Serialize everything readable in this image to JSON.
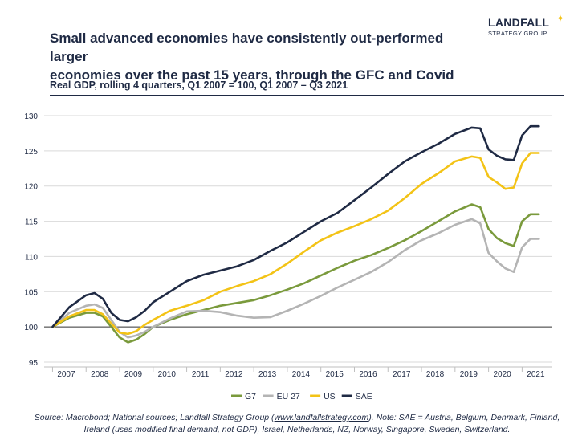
{
  "header": {
    "title_line1": "Small advanced economies have consistently out-performed larger",
    "title_line2": "economies over the past 15 years, through the GFC and Covid",
    "logo_main": "LANDFALL",
    "logo_sub": "STRATEGY GROUP",
    "subtitle": "Real GDP, rolling 4 quarters, Q1 2007 = 100, Q1 2007 – Q3 2021"
  },
  "footer": {
    "source_prefix": "Source: Macrobond; National sources; Landfall Strategy Group (",
    "source_link": "www.landfallstrategy.com",
    "source_suffix": "). Note: SAE = Austria, Belgium, Denmark, Finland, Ireland (uses modified final demand, not GDP), Israel, Netherlands, NZ, Norway, Singapore, Sweden, Switzerland."
  },
  "colors": {
    "G7": "#7a9a3c",
    "EU 27": "#b4b4b4",
    "US": "#f3c316",
    "SAE": "#1f2a44",
    "text": "#1f2a44",
    "grid": "#d9d9d9"
  },
  "chart_data": {
    "type": "line",
    "xlabel": "",
    "ylabel": "",
    "ylim": [
      95,
      130
    ],
    "yticks": [
      95,
      100,
      105,
      110,
      115,
      120,
      125,
      130
    ],
    "xlim": [
      2006.75,
      2021.9
    ],
    "xticks": [
      "2007",
      "2008",
      "2009",
      "2010",
      "2011",
      "2012",
      "2013",
      "2014",
      "2015",
      "2016",
      "2017",
      "2018",
      "2019",
      "2020",
      "2021"
    ],
    "legend_position": "bottom",
    "grid": "horizontal",
    "reference_line": 100,
    "series": [
      {
        "name": "G7",
        "x": [
          2007.0,
          2007.5,
          2008.0,
          2008.25,
          2008.5,
          2008.75,
          2009.0,
          2009.25,
          2009.5,
          2009.75,
          2010.0,
          2010.5,
          2011.0,
          2011.5,
          2012.0,
          2012.5,
          2013.0,
          2013.5,
          2014.0,
          2014.5,
          2015.0,
          2015.5,
          2016.0,
          2016.5,
          2017.0,
          2017.5,
          2018.0,
          2018.5,
          2019.0,
          2019.5,
          2019.75,
          2020.0,
          2020.25,
          2020.5,
          2020.75,
          2021.0,
          2021.25,
          2021.5
        ],
        "y": [
          100,
          101.3,
          102.0,
          102.0,
          101.5,
          100.0,
          98.5,
          97.8,
          98.2,
          99.0,
          100.0,
          101.0,
          101.8,
          102.4,
          103.0,
          103.4,
          103.8,
          104.5,
          105.3,
          106.2,
          107.3,
          108.4,
          109.4,
          110.2,
          111.2,
          112.3,
          113.6,
          115.0,
          116.4,
          117.4,
          117.0,
          113.9,
          112.6,
          111.9,
          111.5,
          115.0,
          116.0,
          116.0
        ]
      },
      {
        "name": "EU 27",
        "x": [
          2007.0,
          2007.5,
          2008.0,
          2008.25,
          2008.5,
          2008.75,
          2009.0,
          2009.25,
          2009.5,
          2009.75,
          2010.0,
          2010.5,
          2011.0,
          2011.5,
          2012.0,
          2012.5,
          2013.0,
          2013.5,
          2014.0,
          2014.5,
          2015.0,
          2015.5,
          2016.0,
          2016.5,
          2017.0,
          2017.5,
          2018.0,
          2018.5,
          2019.0,
          2019.5,
          2019.75,
          2020.0,
          2020.25,
          2020.5,
          2020.75,
          2021.0,
          2021.25,
          2021.5
        ],
        "y": [
          100,
          102.0,
          103.0,
          103.2,
          102.7,
          101.0,
          99.3,
          98.5,
          98.8,
          99.3,
          100.0,
          101.2,
          102.2,
          102.3,
          102.1,
          101.6,
          101.3,
          101.4,
          102.3,
          103.3,
          104.4,
          105.6,
          106.7,
          107.8,
          109.2,
          110.9,
          112.3,
          113.3,
          114.5,
          115.3,
          114.7,
          110.5,
          109.3,
          108.3,
          107.8,
          111.3,
          112.5,
          112.5
        ]
      },
      {
        "name": "US",
        "x": [
          2007.0,
          2007.5,
          2008.0,
          2008.25,
          2008.5,
          2008.75,
          2009.0,
          2009.25,
          2009.5,
          2009.75,
          2010.0,
          2010.5,
          2011.0,
          2011.5,
          2012.0,
          2012.5,
          2013.0,
          2013.5,
          2014.0,
          2014.5,
          2015.0,
          2015.5,
          2016.0,
          2016.5,
          2017.0,
          2017.5,
          2018.0,
          2018.5,
          2019.0,
          2019.5,
          2019.75,
          2020.0,
          2020.25,
          2020.5,
          2020.75,
          2021.0,
          2021.25,
          2021.5
        ],
        "y": [
          100,
          101.5,
          102.4,
          102.4,
          101.8,
          100.5,
          99.2,
          99.0,
          99.4,
          100.3,
          101.0,
          102.3,
          103.0,
          103.8,
          105.0,
          105.8,
          106.5,
          107.5,
          109.0,
          110.7,
          112.3,
          113.4,
          114.3,
          115.3,
          116.5,
          118.3,
          120.3,
          121.8,
          123.5,
          124.2,
          124.0,
          121.3,
          120.5,
          119.6,
          119.8,
          123.2,
          124.7,
          124.7
        ]
      },
      {
        "name": "SAE",
        "x": [
          2007.0,
          2007.5,
          2008.0,
          2008.25,
          2008.5,
          2008.75,
          2009.0,
          2009.25,
          2009.5,
          2009.75,
          2010.0,
          2010.5,
          2011.0,
          2011.5,
          2012.0,
          2012.5,
          2013.0,
          2013.5,
          2014.0,
          2014.5,
          2015.0,
          2015.5,
          2016.0,
          2016.5,
          2017.0,
          2017.5,
          2018.0,
          2018.5,
          2019.0,
          2019.5,
          2019.75,
          2020.0,
          2020.25,
          2020.5,
          2020.75,
          2021.0,
          2021.25,
          2021.5
        ],
        "y": [
          100,
          102.8,
          104.5,
          104.8,
          104.0,
          102.0,
          101.0,
          100.8,
          101.4,
          102.3,
          103.5,
          105.0,
          106.5,
          107.4,
          108.0,
          108.6,
          109.5,
          110.8,
          112.0,
          113.5,
          115.0,
          116.2,
          118.0,
          119.8,
          121.7,
          123.5,
          124.8,
          126.0,
          127.4,
          128.3,
          128.2,
          125.2,
          124.3,
          123.8,
          123.7,
          127.2,
          128.5,
          128.5
        ]
      }
    ]
  }
}
